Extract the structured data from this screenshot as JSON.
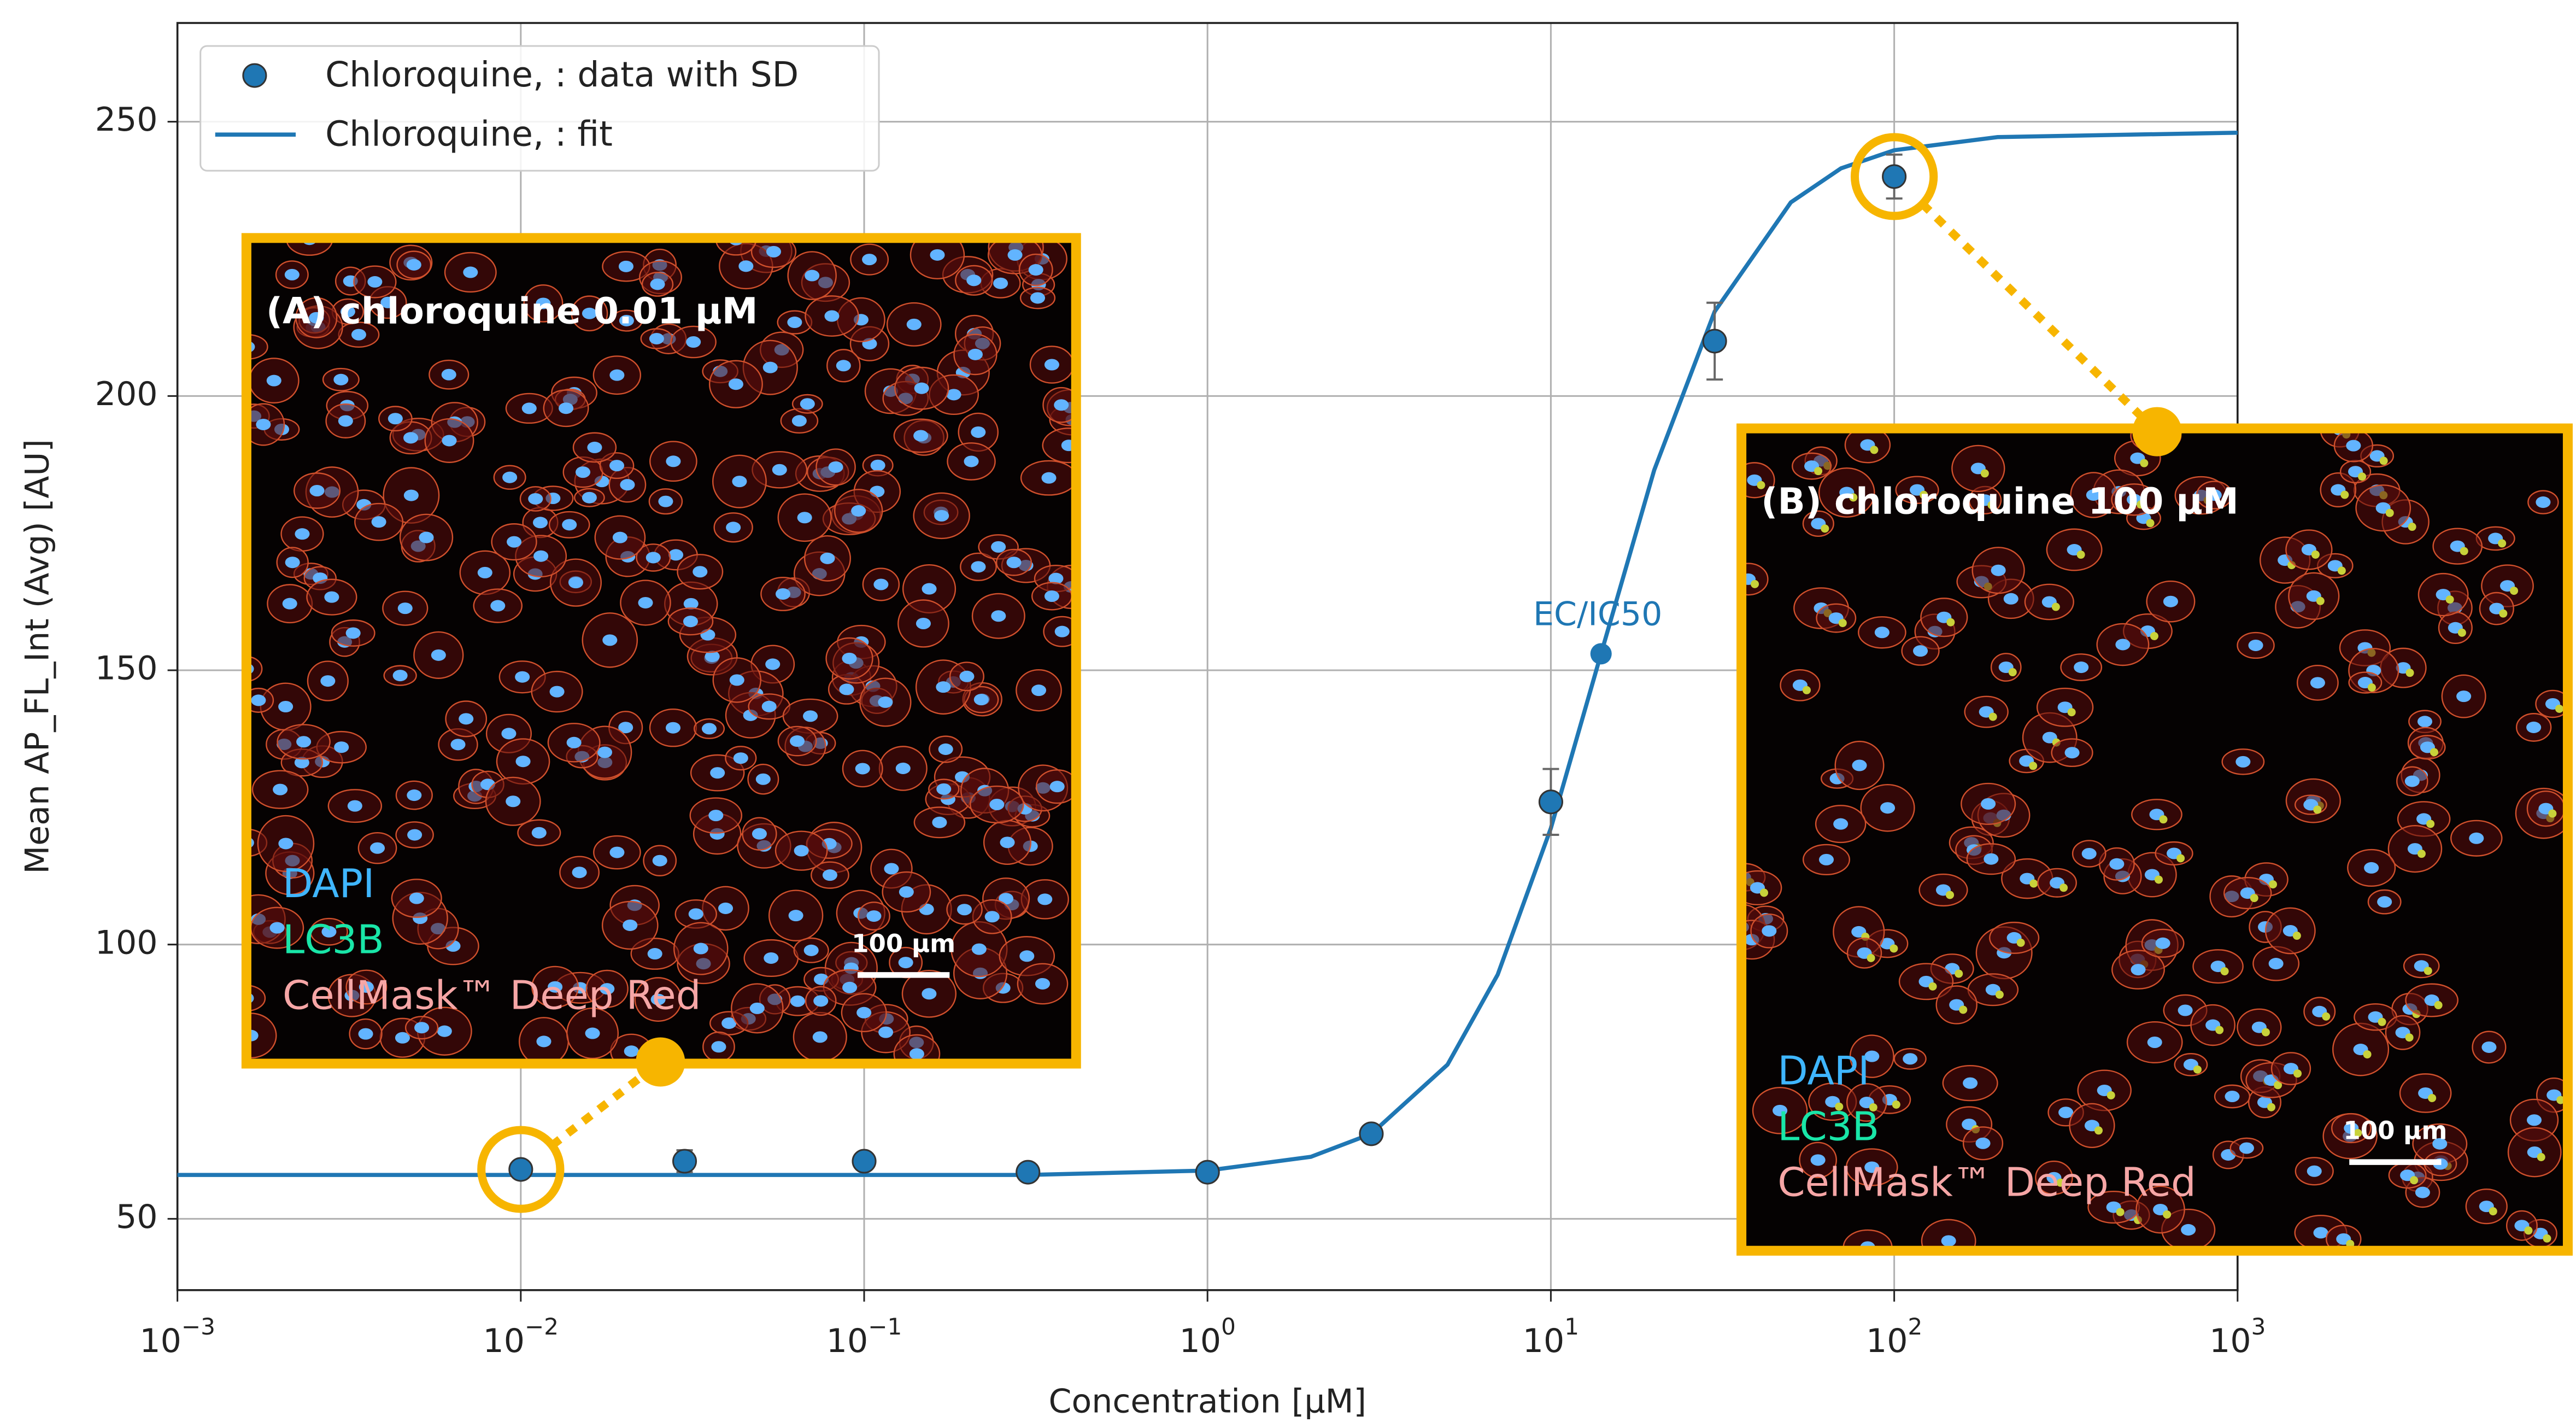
{
  "chart_data": {
    "type": "scatter",
    "xlabel": "Concentration [µM]",
    "ylabel": "Mean AP_FL_Int (Avg) [AU]",
    "xscale": "log",
    "xlim": [
      0.001,
      1000
    ],
    "ylim": [
      37,
      268
    ],
    "grid": true,
    "legend": "upper left",
    "xticks": [
      {
        "value": 0.001,
        "label": "10−3"
      },
      {
        "value": 0.01,
        "label": "10−2"
      },
      {
        "value": 0.1,
        "label": "10−1"
      },
      {
        "value": 1,
        "label": "100"
      },
      {
        "value": 10,
        "label": "101"
      },
      {
        "value": 100,
        "label": "102"
      },
      {
        "value": 1000,
        "label": "103"
      }
    ],
    "yticks": [
      50,
      100,
      150,
      200,
      250
    ],
    "series": [
      {
        "name": "Chloroquine, : data with SD",
        "type": "scatter",
        "color": "#1f77b4",
        "x": [
          0.01,
          0.03,
          0.1,
          0.3,
          1,
          3,
          10,
          30,
          100
        ],
        "values": [
          59,
          60.5,
          60.5,
          58.5,
          58.5,
          65.5,
          126,
          210,
          240
        ],
        "errors": [
          1.5,
          2,
          1,
          1,
          1,
          1,
          6,
          7,
          4
        ]
      },
      {
        "name": "Chloroquine, : fit",
        "type": "line",
        "color": "#1f77b4",
        "x": [
          0.001,
          0.01,
          0.1,
          0.3,
          1,
          2,
          3,
          5,
          7,
          10,
          14,
          20,
          30,
          50,
          70,
          100,
          200,
          1000
        ],
        "values": [
          58,
          58,
          58,
          58,
          58.8,
          61.3,
          65.5,
          78.1,
          94.5,
          121.2,
          153,
          186.5,
          215.4,
          235.3,
          241.5,
          244.8,
          247.2,
          248
        ]
      }
    ],
    "annotation": {
      "text": "EC/IC50",
      "x": 14,
      "y": 153
    }
  },
  "insets": [
    {
      "title": "(A) chloroquine 0.01 µM",
      "channels": [
        "DAPI",
        "LC3B",
        "CellMask™ Deep Red"
      ],
      "scale_bar": "100 µm"
    },
    {
      "title": "(B) chloroquine 100 µM",
      "channels": [
        "DAPI",
        "LC3B",
        "CellMask™ Deep Red"
      ],
      "scale_bar": "100 µm"
    }
  ]
}
